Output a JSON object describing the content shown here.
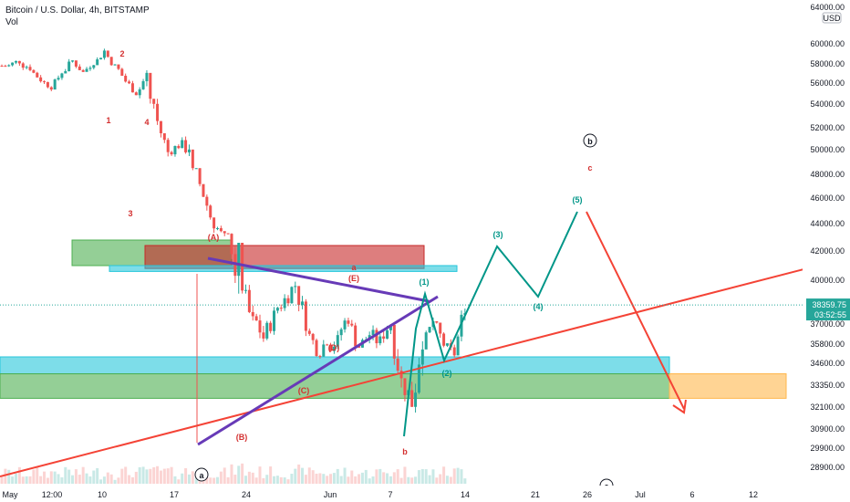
{
  "chart_data": {
    "type": "candlestick",
    "title": "Bitcoin / U.S. Dollar, 4h, BITSTAMP",
    "volume_label": "Vol",
    "currency": "USD",
    "price_axis": {
      "min": 28000,
      "max": 62000,
      "ticks": [
        "60000.00",
        "58000.00",
        "56000.00",
        "54000.00",
        "52000.00",
        "50000.00",
        "48000.00",
        "46000.00",
        "44000.00",
        "42000.00",
        "40000.00",
        "38000.00",
        "37000.00",
        "35800.00",
        "34600.00",
        "33350.00",
        "32100.00",
        "30900.00",
        "29900.00",
        "28900.00"
      ],
      "top_clipped": "64000.00"
    },
    "time_axis": {
      "ticks": [
        "May",
        "12:00",
        "10",
        "17",
        "24",
        "Jun",
        "7",
        "14",
        "21",
        "26",
        "Jul",
        "6",
        "12"
      ]
    },
    "current_price": {
      "value": "38359.75",
      "countdown": "03:52:55",
      "color": "#26a69a"
    },
    "series": [
      {
        "name": "BTC/USD",
        "day_offsets": [
          0,
          1,
          2,
          3,
          4,
          5,
          6,
          7,
          8,
          9,
          10,
          11,
          12,
          13,
          14,
          15,
          16,
          17,
          18,
          19,
          20,
          21,
          22,
          23,
          24,
          25,
          26,
          27,
          28,
          29,
          30,
          31,
          32,
          33,
          34,
          35,
          36,
          37,
          38,
          39,
          40,
          41,
          42,
          43
        ],
        "closes": [
          57800,
          58300,
          57600,
          56400,
          55700,
          57200,
          58300,
          57100,
          58200,
          59300,
          57700,
          56200,
          55100,
          56800,
          52500,
          49800,
          50400,
          50300,
          47200,
          44600,
          43200,
          42400,
          40300,
          37000,
          36200,
          37600,
          38700,
          39700,
          37300,
          35600,
          36100,
          35900,
          37500,
          35700,
          36400,
          35900,
          37100,
          33500,
          32400,
          36700,
          37200,
          35800,
          35200,
          38350
        ],
        "highs": [
          58800,
          59500,
          58600,
          57600,
          57000,
          58500,
          59600,
          58300,
          59200,
          60000,
          58700,
          57600,
          56500,
          57800,
          54500,
          51500,
          51200,
          51400,
          48500,
          46300,
          44200,
          43300,
          42600,
          40800,
          38000,
          38700,
          40100,
          40800,
          39300,
          37500,
          37200,
          37400,
          38700,
          37600,
          37500,
          37000,
          37600,
          36400,
          34600,
          39300,
          38600,
          37100,
          36300,
          38600
        ],
        "lows": [
          56800,
          57300,
          56400,
          55200,
          55000,
          56100,
          57200,
          56200,
          57200,
          58100,
          56300,
          55000,
          54200,
          53200,
          50200,
          48200,
          48800,
          47200,
          44500,
          42700,
          41100,
          38500,
          30000,
          35800,
          34200,
          35300,
          36700,
          37200,
          35100,
          34300,
          34800,
          34200,
          35200,
          34200,
          35000,
          34200,
          34000,
          31200,
          30600,
          31800,
          35700,
          34500,
          34300,
          35100
        ]
      }
    ],
    "zones": [
      {
        "type": "rectangle",
        "color": "#4caf50",
        "opacity": 0.6,
        "price_top": 42800,
        "price_bottom": 41000
      },
      {
        "type": "rectangle",
        "color": "#c62828",
        "opacity": 0.6,
        "price_top": 42400,
        "price_bottom": 40800
      },
      {
        "type": "rectangle",
        "color": "#26c6da",
        "opacity": 0.6,
        "price_top": 41000,
        "price_bottom": 40600
      },
      {
        "type": "rectangle",
        "color": "#26c6da",
        "opacity": 0.6,
        "price_top": 35000,
        "price_bottom": 34000
      },
      {
        "type": "rectangle",
        "color": "#4caf50",
        "opacity": 0.6,
        "price_top": 34000,
        "price_bottom": 32600
      },
      {
        "type": "rectangle",
        "color": "#ffb74d",
        "opacity": 0.6,
        "price_top": 34000,
        "price_bottom": 32600
      }
    ],
    "labels": {
      "red_numbers": [
        "1",
        "2",
        "3",
        "4"
      ],
      "triangle": [
        "(A)",
        "(B)",
        "(C)",
        "(D)",
        "(E)"
      ],
      "wave_letters": [
        "a",
        "b",
        "c"
      ],
      "green_impulse": [
        "(1)",
        "(2)",
        "(3)",
        "(4)",
        "(5)"
      ],
      "circled": [
        "a",
        "b",
        "c"
      ]
    },
    "colors": {
      "up": "#26a69a",
      "down": "#ef5350",
      "triangle_line": "#673ab7",
      "trend_line": "#f44336",
      "projection": "#009688",
      "axis_text": "#131722"
    }
  }
}
